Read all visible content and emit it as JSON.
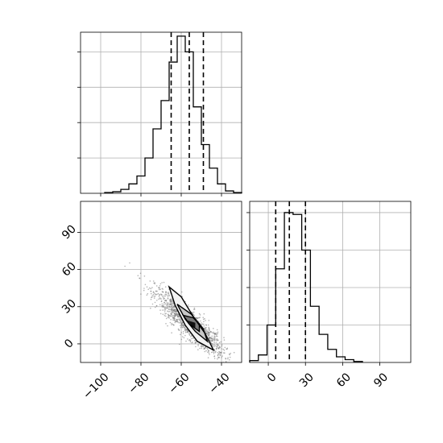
{
  "chart_data": [
    {
      "id": "hist_x",
      "type": "bar",
      "panel": "top-left",
      "xlim": [
        -110,
        -30
      ],
      "bin_edges": [
        -98,
        -94,
        -90,
        -86,
        -82,
        -78,
        -74,
        -70,
        -66,
        -62,
        -58,
        -54,
        -50,
        -46,
        -42,
        -38,
        -34,
        -30
      ],
      "values": [
        1,
        2,
        5,
        12,
        22,
        45,
        82,
        118,
        167,
        200,
        180,
        110,
        62,
        32,
        12,
        3,
        1
      ],
      "ylim": [
        0,
        205
      ],
      "quantiles": [
        -65,
        -56,
        -49
      ],
      "grid": true
    },
    {
      "id": "hist_y",
      "type": "bar",
      "panel": "bottom-right",
      "xlim": [
        -15,
        115
      ],
      "bin_edges": [
        -15,
        -8,
        -1,
        6,
        13,
        20,
        27,
        34,
        41,
        48,
        55,
        62,
        69,
        76
      ],
      "values": [
        2,
        8,
        40,
        100,
        160,
        158,
        120,
        60,
        30,
        14,
        6,
        3,
        1
      ],
      "ylim": [
        0,
        172
      ],
      "ticks": [
        0,
        30,
        60,
        90
      ],
      "quantiles": [
        6,
        17,
        30
      ],
      "grid": true
    },
    {
      "id": "scatter_xy",
      "type": "scatter",
      "panel": "bottom-left",
      "xlim": [
        -110,
        -30
      ],
      "ylim": [
        -15,
        115
      ],
      "xticks": [
        -100,
        -80,
        -60,
        -40
      ],
      "yticks": [
        0,
        30,
        60,
        90
      ],
      "center": [
        -56,
        17
      ],
      "slope": -1.4,
      "contours": [
        [
          [
            -66,
            46
          ],
          [
            -63,
            31
          ],
          [
            -58,
            15
          ],
          [
            -52,
            2
          ],
          [
            -44,
            -5
          ],
          [
            -48,
            8
          ],
          [
            -54,
            22
          ],
          [
            -60,
            38
          ]
        ],
        [
          [
            -62,
            32
          ],
          [
            -58,
            20
          ],
          [
            -53,
            10
          ],
          [
            -47,
            2
          ],
          [
            -49,
            12
          ],
          [
            -55,
            24
          ]
        ],
        [
          [
            -59,
            23
          ],
          [
            -56,
            16
          ],
          [
            -51,
            10
          ],
          [
            -51,
            16
          ],
          [
            -54,
            21
          ]
        ],
        [
          [
            -57,
            19
          ],
          [
            -55,
            15
          ],
          [
            -53,
            13
          ],
          [
            -53,
            17
          ]
        ]
      ],
      "grid": true
    }
  ]
}
